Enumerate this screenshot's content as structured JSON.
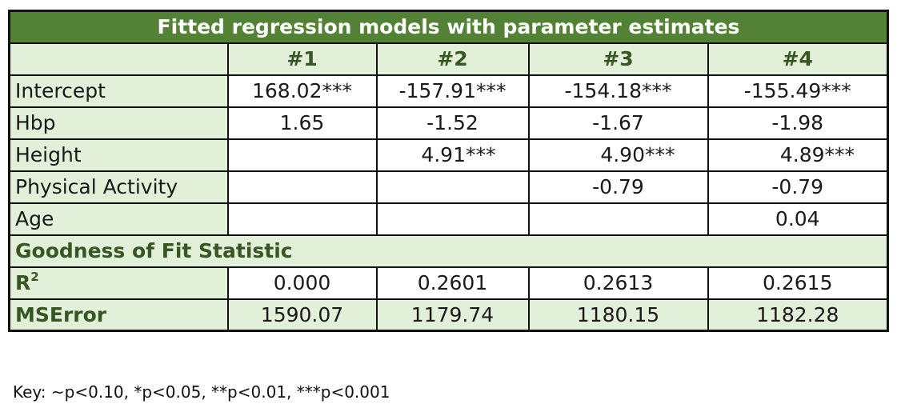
{
  "title": "Fitted regression models with parameter estimates",
  "model_headers": [
    "#1",
    "#2",
    "#3",
    "#4"
  ],
  "rows": [
    {
      "label": "Intercept",
      "values": [
        "168.02***",
        "-157.91***",
        "-154.18***",
        "-155.49***"
      ]
    },
    {
      "label": "Hbp",
      "values": [
        "1.65",
        "-1.52",
        "-1.67",
        "-1.98"
      ]
    },
    {
      "label": "Height",
      "values": [
        "",
        "4.91***",
        "4.90***",
        "4.89***"
      ]
    },
    {
      "label": "Physical Activity",
      "values": [
        "",
        "",
        "-0.79",
        "-0.79"
      ]
    },
    {
      "label": "Age",
      "values": [
        "",
        "",
        "",
        "0.04"
      ]
    }
  ],
  "gof_section": "Goodness of Fit Statistic",
  "gof_rows": [
    {
      "label": "R",
      "sup": "2",
      "values": [
        "0.000",
        "0.2601",
        "0.2613",
        "0.2615"
      ]
    },
    {
      "label": "MSError",
      "values": [
        "1590.07",
        "1179.74",
        "1180.15",
        "1182.28"
      ]
    }
  ],
  "key": "Key: ~p<0.10, *p<0.05, **p<0.01, ***p<0.001",
  "colors": {
    "title_bg": "#538135",
    "header_bg": "#e2efd9",
    "header_text": "#375623"
  }
}
